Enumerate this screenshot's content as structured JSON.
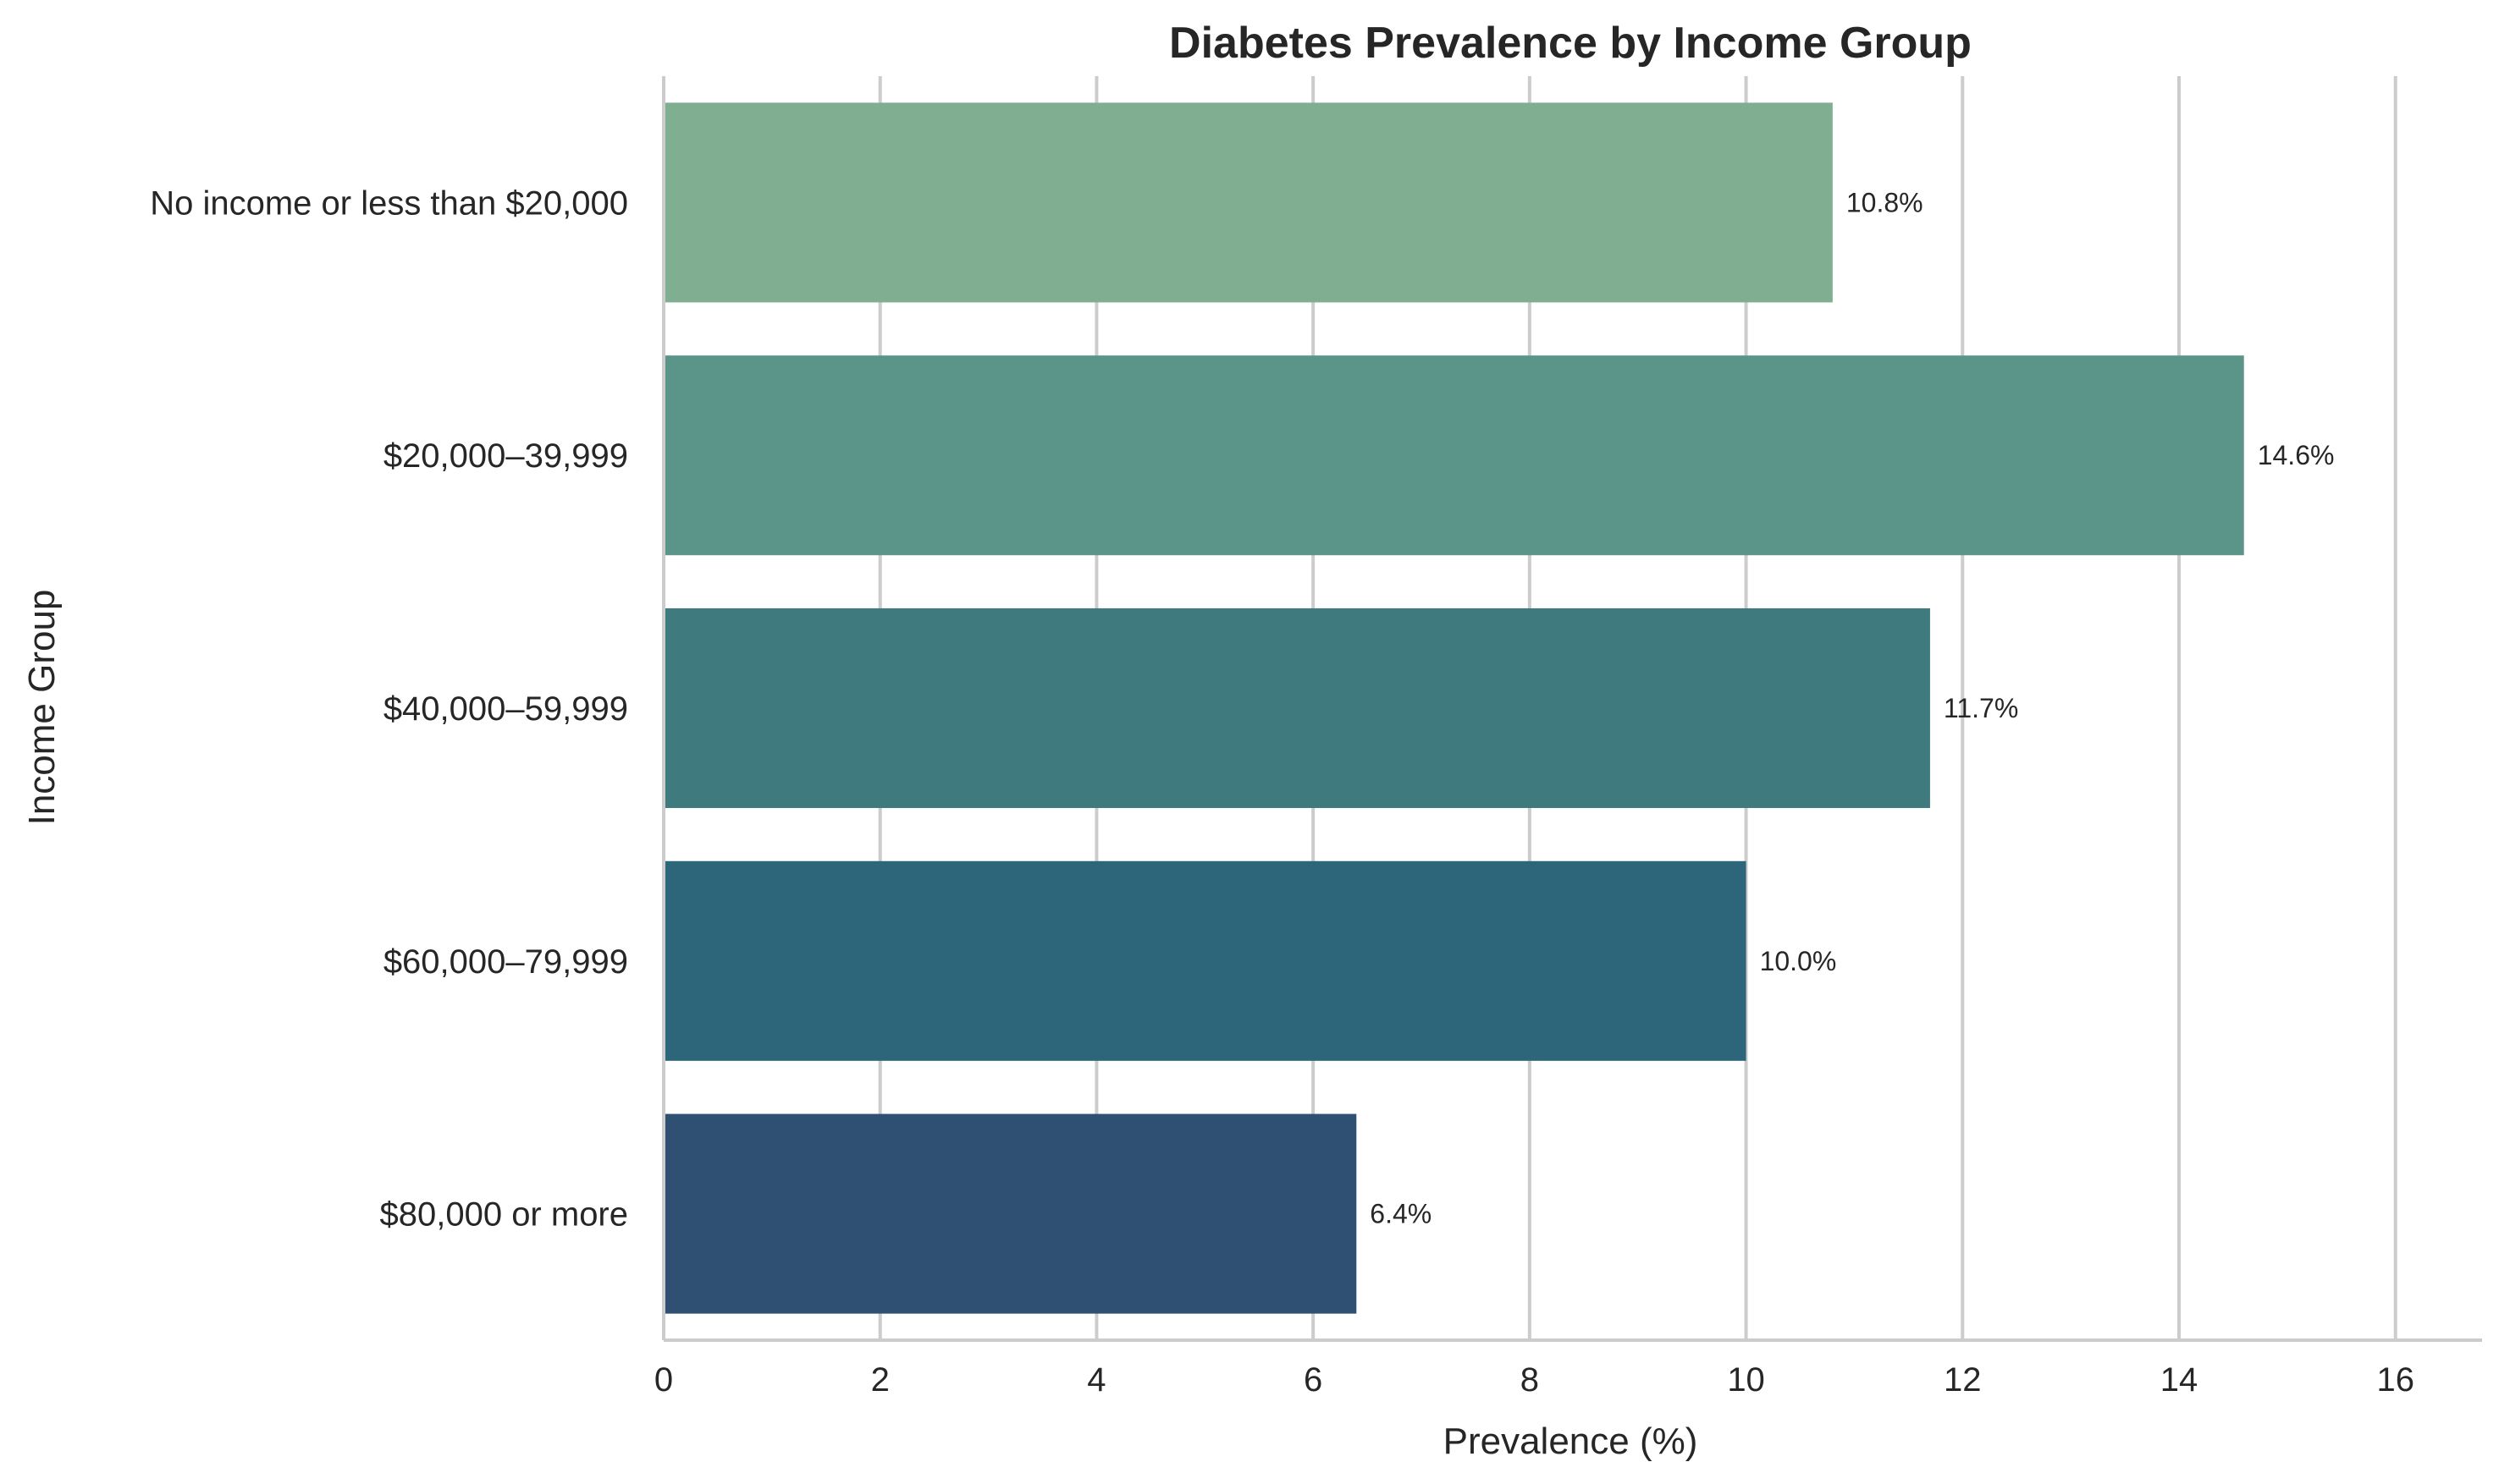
{
  "chart_data": {
    "type": "bar",
    "orientation": "horizontal",
    "title": "Diabetes Prevalence by Income Group",
    "xlabel": "Prevalence (%)",
    "ylabel": "Income Group",
    "categories": [
      "No income or less than $20,000",
      "$20,000–39,999",
      "$40,000–59,999",
      "$60,000–79,999",
      "$80,000 or more"
    ],
    "values": [
      10.8,
      14.6,
      11.7,
      10.0,
      6.4
    ],
    "data_labels": [
      "10.8%",
      "14.6%",
      "11.7%",
      "10.0%",
      "6.4%"
    ],
    "bar_colors": [
      "#7faf90",
      "#5b9488",
      "#3f7a7f",
      "#2d667b",
      "#2f5073"
    ],
    "xlim": [
      0,
      16.8
    ],
    "xticks": [
      0,
      2,
      4,
      6,
      8,
      10,
      12,
      14,
      16
    ],
    "xtick_labels": [
      "0",
      "2",
      "4",
      "6",
      "8",
      "10",
      "12",
      "14",
      "16"
    ],
    "grid": "vertical",
    "grid_color": "#cccccc",
    "axis_color": "#cccccc",
    "text_color": "#262626"
  }
}
